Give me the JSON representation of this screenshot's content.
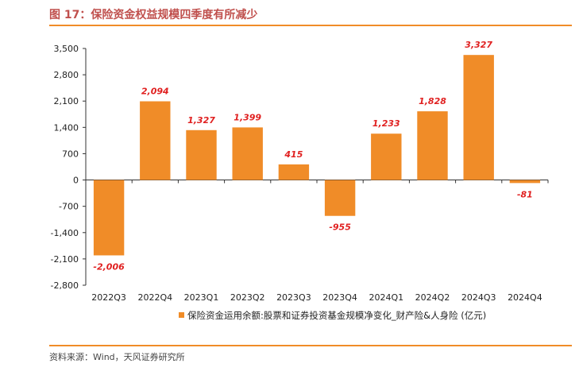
{
  "header": {
    "title": "图 17：保险资金权益规模四季度有所减少"
  },
  "footer": {
    "source": "资料来源：Wind，天风证券研究所"
  },
  "colors": {
    "bar": "#f08c28",
    "data_label": "#e02020",
    "rule": "#f08c28",
    "title": "#c0504d"
  },
  "chart_data": {
    "type": "bar",
    "title": "",
    "xlabel": "",
    "ylabel": "",
    "categories": [
      "2022Q3",
      "2022Q4",
      "2023Q1",
      "2023Q2",
      "2023Q3",
      "2023Q4",
      "2024Q1",
      "2024Q2",
      "2024Q3",
      "2024Q4"
    ],
    "series": [
      {
        "name": "保险资金运用余额:股票和证券投资基金规模净变化_财产险&人身险 (亿元)",
        "values": [
          -2006,
          2094,
          1327,
          1399,
          415,
          -955,
          1233,
          1828,
          3327,
          -81
        ],
        "labels": [
          "-2,006",
          "2,094",
          "1,327",
          "1,399",
          "415",
          "-955",
          "1,233",
          "1,828",
          "3,327",
          "-81"
        ]
      }
    ],
    "ylim": [
      -2800,
      3500
    ],
    "yticks": [
      3500,
      2800,
      2100,
      1400,
      700,
      0,
      -700,
      -1400,
      -2100,
      -2800
    ],
    "ytick_labels": [
      "3,500",
      "2,800",
      "2,100",
      "1,400",
      "700",
      "0",
      "-700",
      "-1,400",
      "-2,100",
      "-2,800"
    ],
    "grid": false,
    "legend_position": "bottom"
  }
}
